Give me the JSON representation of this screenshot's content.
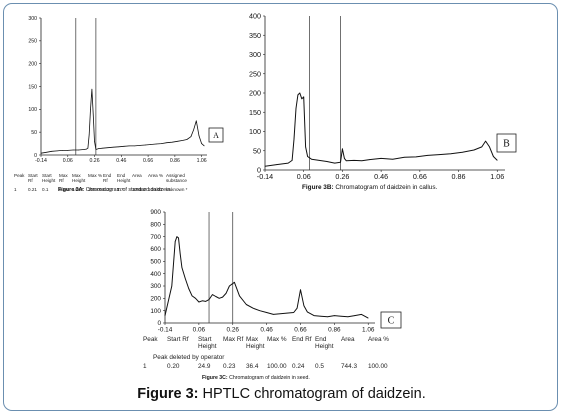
{
  "figure_caption": {
    "label": "Figure 3:",
    "text": "HPTLC chromatogram of daidzein."
  },
  "panel_a": {
    "letter": "A",
    "caption_bold": "Figure 3A:",
    "caption": "Chromatogram of standard daidzein.",
    "table": {
      "headers": [
        "Peak",
        "Start Rf",
        "Start Height",
        "Max Rf",
        "Max Height",
        "Max %",
        "End Rf",
        "End Height",
        "Area",
        "Area %",
        "Assigned substance"
      ],
      "rows": [
        [
          "1",
          "0.21",
          "0.1",
          "0.24",
          "143.7",
          "100.00",
          "0.27",
          "1.7",
          "1088.0",
          "100.00",
          "unknown *"
        ]
      ]
    }
  },
  "panel_b": {
    "letter": "B",
    "caption_bold": "Figure 3B:",
    "caption": "Chromatogram of daidzein in callus."
  },
  "panel_c": {
    "letter": "C",
    "caption_bold": "Figure 3C:",
    "caption": "Chromatogram of daidzein in seed.",
    "table": {
      "headers": [
        "Peak",
        "Start Rf",
        "Start Height",
        "Max Rf",
        "Max Height",
        "Max %",
        "End Rf",
        "End Height",
        "Area",
        "Area %"
      ],
      "note": "Peak deleted by operator",
      "rows": [
        [
          "1",
          "0.20",
          "24.9",
          "0.23",
          "36.4",
          "100.00",
          "0.24",
          "0.5",
          "744.3",
          "100.00"
        ]
      ]
    }
  },
  "chart_data": [
    {
      "type": "line",
      "panel": "A",
      "xlim": [
        -0.14,
        1.1
      ],
      "ylim": [
        0,
        300
      ],
      "x_ticks": [
        "-0.14",
        "0.06",
        "0.26",
        "0.46",
        "0.66",
        "0.86",
        "1.06"
      ],
      "y_ticks": [
        "0",
        "50",
        "100",
        "150",
        "200",
        "250",
        "300"
      ],
      "markers_rf": [
        0.12,
        0.27
      ],
      "x": [
        -0.14,
        -0.1,
        -0.06,
        -0.02,
        0.02,
        0.06,
        0.1,
        0.14,
        0.18,
        0.2,
        0.21,
        0.22,
        0.23,
        0.24,
        0.25,
        0.26,
        0.27,
        0.29,
        0.32,
        0.36,
        0.4,
        0.44,
        0.48,
        0.52,
        0.56,
        0.6,
        0.64,
        0.68,
        0.72,
        0.76,
        0.8,
        0.84,
        0.88,
        0.92,
        0.95,
        0.98,
        1.0,
        1.02,
        1.04,
        1.06,
        1.08
      ],
      "y": [
        4,
        6,
        8,
        9,
        10,
        10,
        11,
        11,
        12,
        13,
        15,
        45,
        100,
        144,
        90,
        30,
        12,
        14,
        15,
        16,
        17,
        18,
        19,
        20,
        20,
        21,
        22,
        23,
        24,
        25,
        27,
        28,
        30,
        32,
        34,
        40,
        55,
        75,
        42,
        25,
        20
      ]
    },
    {
      "type": "line",
      "panel": "B",
      "xlim": [
        -0.14,
        1.1
      ],
      "ylim": [
        0,
        400
      ],
      "x_ticks": [
        "-0.14",
        "0.06",
        "0.26",
        "0.46",
        "0.66",
        "0.86",
        "1.06"
      ],
      "y_ticks": [
        "0",
        "50",
        "100",
        "150",
        "200",
        "250",
        "300",
        "350",
        "400"
      ],
      "markers_rf": [
        0.09,
        0.25
      ],
      "x": [
        -0.14,
        -0.08,
        -0.02,
        0.0,
        0.01,
        0.02,
        0.03,
        0.04,
        0.05,
        0.06,
        0.07,
        0.08,
        0.1,
        0.14,
        0.18,
        0.22,
        0.25,
        0.26,
        0.27,
        0.28,
        0.32,
        0.36,
        0.4,
        0.46,
        0.52,
        0.58,
        0.64,
        0.7,
        0.76,
        0.82,
        0.88,
        0.94,
        0.98,
        1.0,
        1.02,
        1.04,
        1.06
      ],
      "y": [
        10,
        14,
        18,
        25,
        80,
        160,
        195,
        200,
        185,
        190,
        60,
        35,
        28,
        25,
        22,
        18,
        20,
        55,
        30,
        24,
        25,
        24,
        27,
        30,
        28,
        33,
        34,
        38,
        40,
        42,
        46,
        52,
        60,
        75,
        60,
        35,
        25
      ]
    },
    {
      "type": "line",
      "panel": "C",
      "xlim": [
        -0.14,
        1.1
      ],
      "ylim": [
        0,
        900
      ],
      "x_ticks": [
        "-0.14",
        "0.06",
        "0.26",
        "0.46",
        "0.66",
        "0.86",
        "1.06"
      ],
      "y_ticks": [
        "0",
        "100",
        "200",
        "300",
        "400",
        "500",
        "600",
        "700",
        "800",
        "900"
      ],
      "markers_rf": [
        0.12,
        0.26
      ],
      "x": [
        -0.14,
        -0.1,
        -0.08,
        -0.07,
        -0.06,
        -0.05,
        -0.04,
        -0.02,
        0.0,
        0.02,
        0.04,
        0.06,
        0.08,
        0.1,
        0.12,
        0.14,
        0.16,
        0.18,
        0.2,
        0.22,
        0.24,
        0.27,
        0.3,
        0.34,
        0.38,
        0.42,
        0.46,
        0.5,
        0.54,
        0.58,
        0.62,
        0.64,
        0.66,
        0.68,
        0.7,
        0.74,
        0.78,
        0.82,
        0.86,
        0.9,
        0.94,
        0.98,
        1.02,
        1.06
      ],
      "y": [
        60,
        300,
        660,
        700,
        690,
        560,
        450,
        360,
        280,
        220,
        200,
        170,
        180,
        175,
        190,
        230,
        215,
        200,
        210,
        240,
        300,
        330,
        220,
        150,
        120,
        100,
        85,
        70,
        75,
        80,
        85,
        120,
        270,
        140,
        90,
        60,
        55,
        50,
        60,
        55,
        50,
        60,
        70,
        40
      ]
    }
  ]
}
